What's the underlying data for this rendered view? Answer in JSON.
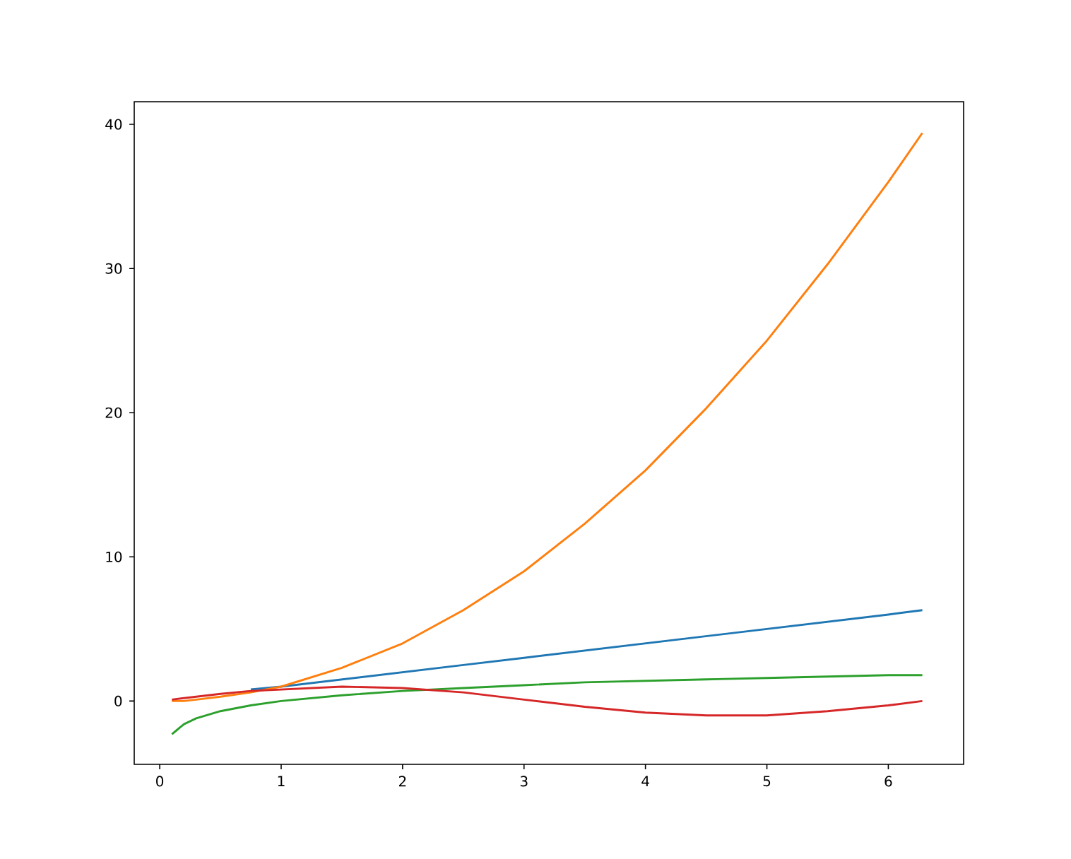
{
  "chart_data": {
    "type": "line",
    "x": [
      0.1,
      0.2,
      0.3,
      0.5,
      0.75,
      1,
      1.5,
      2,
      2.5,
      3,
      3.5,
      4,
      4.5,
      5,
      5.5,
      6,
      6.28
    ],
    "series": [
      {
        "color": "#1f77b4",
        "values": [
          null,
          null,
          null,
          null,
          0.8,
          1,
          1.5,
          2,
          2.5,
          3,
          3.5,
          4,
          4.5,
          5,
          5.5,
          6,
          6.3
        ]
      },
      {
        "color": "#ff7f0e",
        "values": [
          0,
          0,
          0.1,
          0.3,
          0.6,
          1,
          2.3,
          4,
          6.3,
          9,
          12.3,
          16,
          20.3,
          25,
          30.3,
          36,
          39.4
        ]
      },
      {
        "color": "#2ca02c",
        "values": [
          -2.3,
          -1.6,
          -1.2,
          -0.7,
          -0.3,
          0,
          0.4,
          0.7,
          0.9,
          1.1,
          1.3,
          1.4,
          1.5,
          1.6,
          1.7,
          1.8,
          1.8
        ]
      },
      {
        "color": "#d62728",
        "values": [
          0.1,
          0.2,
          0.3,
          0.5,
          0.7,
          0.8,
          1.0,
          0.9,
          0.6,
          0.1,
          -0.4,
          -0.8,
          -1.0,
          -1.0,
          -0.7,
          -0.3,
          0.0
        ]
      }
    ],
    "xlim": [
      -0.21,
      6.62
    ],
    "ylim": [
      -4.39,
      41.57
    ],
    "xticks": [
      0,
      1,
      2,
      3,
      4,
      5,
      6
    ],
    "yticks": [
      0,
      10,
      20,
      30,
      40
    ]
  }
}
